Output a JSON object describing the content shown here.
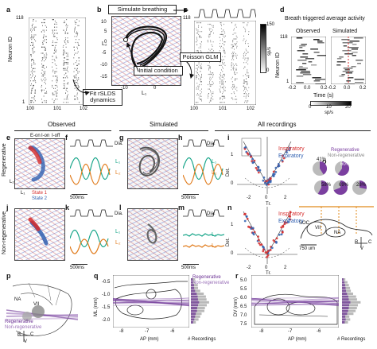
{
  "panels": [
    "a",
    "b",
    "c",
    "d",
    "e",
    "f",
    "g",
    "h",
    "i",
    "j",
    "k",
    "l",
    "m",
    "n",
    "o",
    "p",
    "q",
    "r"
  ],
  "panel_a": {
    "ytop": "118",
    "ybot": "1",
    "ylabel": "Neuron ID",
    "xticks": [
      "100",
      "101",
      "102"
    ]
  },
  "panel_b": {
    "simulate_box": "Simulate breathing",
    "fit_box": "Fit rSLDS dynamics",
    "initial_condition": "Initial condition",
    "xaxis": "L₁",
    "yaxis": "L₂",
    "yticks": [
      "10",
      "5",
      "0",
      "-5",
      "-10",
      "-15"
    ],
    "xticks": [
      "-10",
      "0"
    ]
  },
  "panel_c": {
    "poisson_box": "Poisson GLM",
    "ytop": "118",
    "xticks": [
      "100",
      "101",
      "102"
    ],
    "cbar_top": "150",
    "cbar_bot": "0",
    "cbar_label": "sp/s"
  },
  "panel_d": {
    "title": "Breath triggered average activity",
    "observed": "Observed",
    "simulated": "Simulated",
    "ytop": "118",
    "ybot": "1",
    "ylabel": "Neuron ID",
    "xticks": [
      "-0.2",
      "0.0",
      "0.2"
    ],
    "xlabel": "Time (s)",
    "cbar_ticks": [
      "0",
      "10",
      "20"
    ],
    "cbar_label": "sp/s"
  },
  "headers": {
    "observed": "Observed",
    "simulated": "Simulated",
    "all": "All recordings"
  },
  "rows": {
    "regenerative": "Regenerative",
    "nonregenerative": "Non-regenerative"
  },
  "panel_e": {
    "legend": [
      "E-on",
      "I-on",
      "I-off"
    ],
    "states": [
      "State 1",
      "State 2"
    ],
    "l1": "L₁",
    "l2": "L₂"
  },
  "panel_f": {
    "dia": "Dia.",
    "l1": "L₁",
    "l2": "L₂",
    "scale": "500ms"
  },
  "panel_h": {
    "dia": "Dia.",
    "l1": "L₁",
    "l2": "L₂",
    "scale": "500ms"
  },
  "panel_k": {
    "dia": "Dia.",
    "l1": "L₁",
    "l2": "L₂",
    "scale": "500ms"
  },
  "panel_m": {
    "dia": "Dia.",
    "l1": "L₁",
    "l2": "L₂",
    "scale": "500ms"
  },
  "panel_i": {
    "inspiratory": "Inspiratory",
    "expiratory": "Expiratory",
    "ylabel": "Det.",
    "xlabel": "Tr.",
    "yticks": [
      "1",
      "0"
    ],
    "xticks": [
      "-2",
      "0",
      "2"
    ]
  },
  "panel_n": {
    "inspiratory": "Inspiratory",
    "expiratory": "Expiratory",
    "ylabel": "Det.",
    "xlabel": "Tr.",
    "yticks": [
      "1",
      "0"
    ],
    "xticks": [
      "-2",
      "0",
      "2"
    ]
  },
  "panel_o": {
    "legend_regen": "Regenerative",
    "legend_nonregen": "Non-regenerative",
    "pcts": [
      "41%",
      "60%",
      "58%",
      "69%",
      "28%"
    ],
    "labels": [
      "SOC",
      "VII",
      "NA",
      "R",
      "C",
      "V"
    ],
    "scale": "750 um",
    "colors": {
      "regen": "#7b3fa0",
      "nonregen": "#bbbbbb",
      "orange": "#e08a1a"
    }
  },
  "panel_p": {
    "labels": [
      "NA",
      "VII",
      "R",
      "C",
      "V"
    ],
    "legend_regen": "Regenerative",
    "legend_nonregen": "Non-regenerative"
  },
  "panel_q": {
    "ylabel": "ML (mm)",
    "xlabel": "AP (mm)",
    "xticks": [
      "-8",
      "-7",
      "-6"
    ],
    "yticks": [
      "-0.5",
      "-1.0",
      "-1.5",
      "-2.0"
    ],
    "hist_label": "# Recordings",
    "legend_regen": "Regenerative",
    "legend_nonregen": "Non-regenerative"
  },
  "panel_r": {
    "ylabel": "DV (mm)",
    "xlabel": "AP (mm)",
    "xticks": [
      "-8",
      "-7",
      "-6"
    ],
    "yticks": [
      "5.0",
      "5.5",
      "6.0",
      "6.5",
      "7.0",
      "7.5"
    ],
    "hist_label": "# Recordings"
  },
  "colors": {
    "red": "#d62c2c",
    "blue": "#2f5fb0",
    "green": "#17a589",
    "orange": "#e07a1a",
    "purple": "#6a2f93"
  }
}
